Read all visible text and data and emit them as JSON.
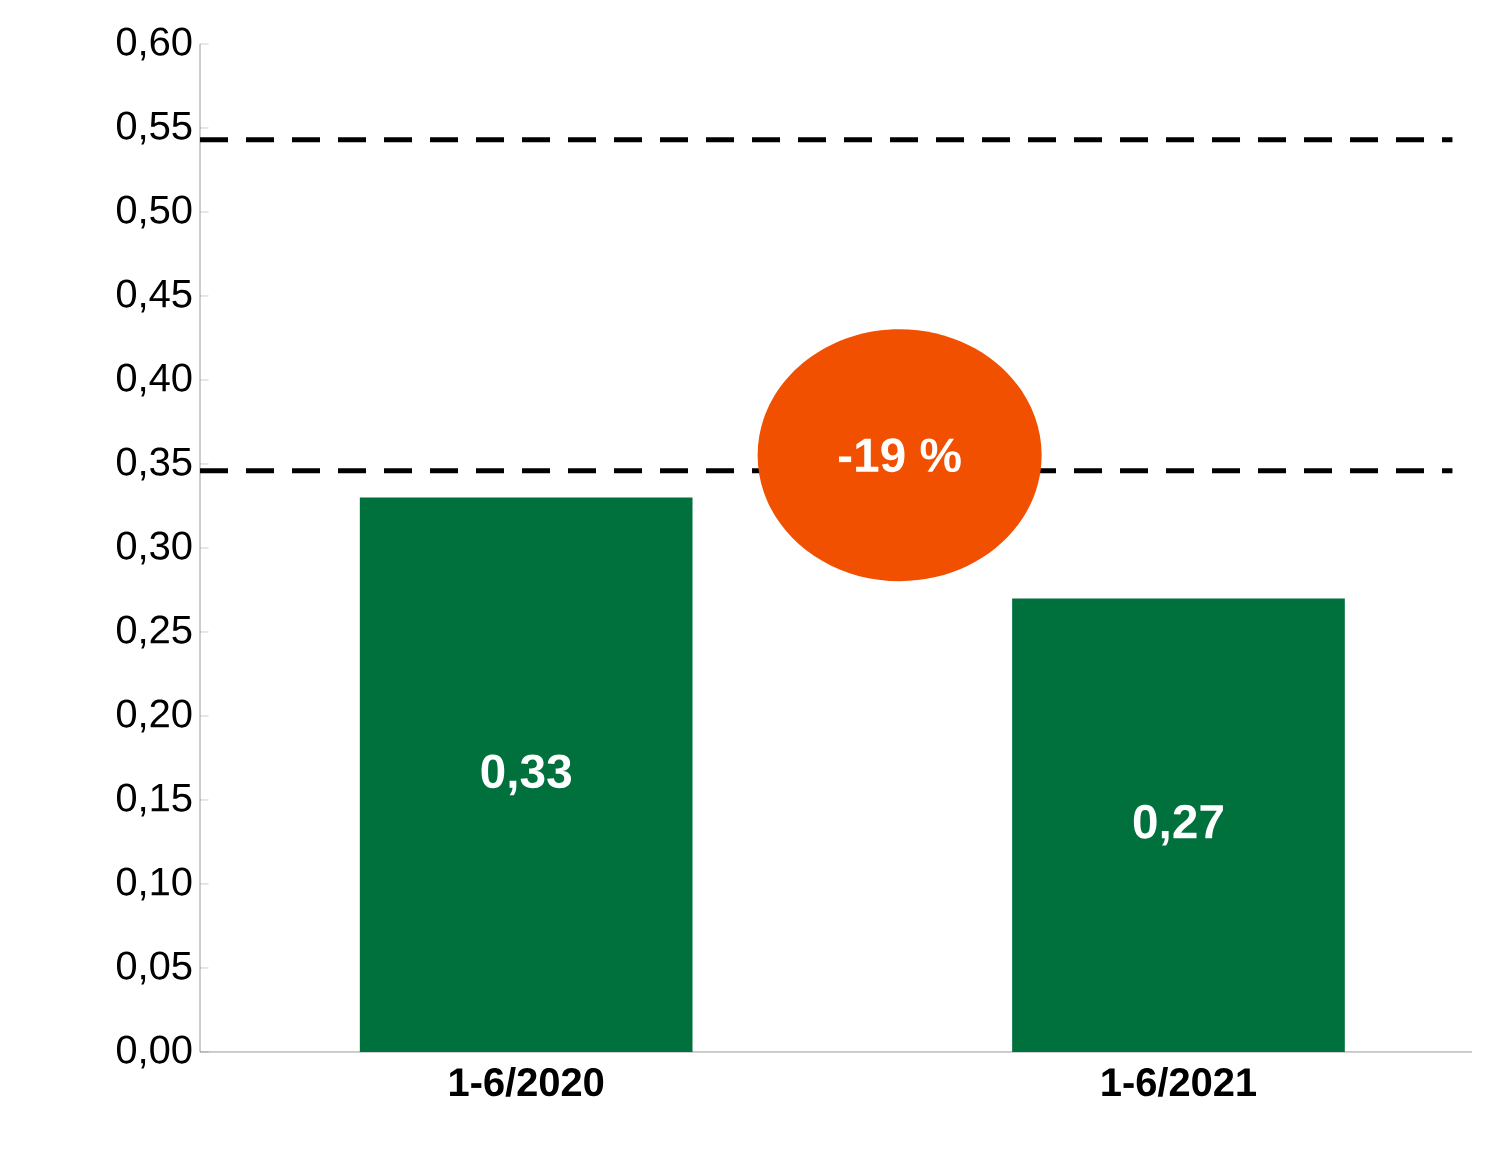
{
  "chart_data": {
    "type": "bar",
    "categories": [
      "1-6/2020",
      "1-6/2021"
    ],
    "values": [
      0.33,
      0.27
    ],
    "value_labels": [
      "0,33",
      "0,27"
    ],
    "color": "#00703c",
    "ylim": [
      0,
      0.6
    ],
    "yticks": [
      {
        "value": 0,
        "label": "0,00"
      },
      {
        "value": 0.05,
        "label": "0,05"
      },
      {
        "value": 0.1,
        "label": "0,10"
      },
      {
        "value": 0.15,
        "label": "0,15"
      },
      {
        "value": 0.2,
        "label": "0,20"
      },
      {
        "value": 0.25,
        "label": "0,25"
      },
      {
        "value": 0.3,
        "label": "0,30"
      },
      {
        "value": 0.35,
        "label": "0,35"
      },
      {
        "value": 0.4,
        "label": "0,40"
      },
      {
        "value": 0.45,
        "label": "0,45"
      },
      {
        "value": 0.5,
        "label": "0,50"
      },
      {
        "value": 0.55,
        "label": "0,55"
      },
      {
        "value": 0.6,
        "label": "0,60"
      }
    ],
    "ref_lines": [
      {
        "axis": "y",
        "value": 0.543,
        "color": "#000000",
        "line_style": "dashed"
      },
      {
        "axis": "y",
        "value": 0.346,
        "color": "#000000",
        "line_style": "dashed"
      }
    ],
    "annotations": [
      "-19 %"
    ]
  }
}
